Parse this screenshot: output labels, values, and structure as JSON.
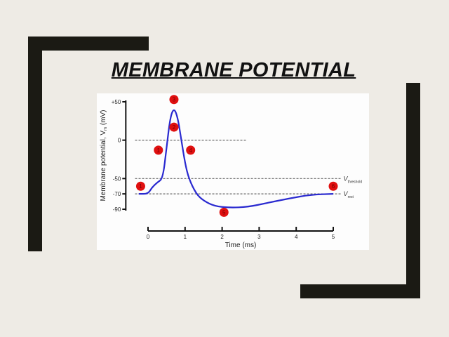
{
  "slide": {
    "title": "MEMBRANE POTENTIAL"
  },
  "chart_data": {
    "type": "line",
    "xlabel": "Time (ms)",
    "ylabel": "Membrane potential, Vm (mV)",
    "ylabel_main": "Membrane potential, V",
    "ylabel_sub": "m",
    "ylabel_unit": " (mV)",
    "x_ticks": [
      0,
      1,
      2,
      3,
      4,
      5
    ],
    "y_ticks": [
      {
        "value": 50,
        "label": "+50"
      },
      {
        "value": 0,
        "label": "0"
      },
      {
        "value": -50,
        "label": "-50"
      },
      {
        "value": -70,
        "label": "-70"
      },
      {
        "value": -90,
        "label": "-90"
      }
    ],
    "xlim": [
      -0.3,
      5
    ],
    "ylim": [
      -90,
      50
    ],
    "series": [
      {
        "color": "#2a2ad0",
        "points": [
          [
            -0.25,
            -70
          ],
          [
            0,
            -70
          ],
          [
            0.1,
            -62
          ],
          [
            0.25,
            -55
          ],
          [
            0.4,
            -50
          ],
          [
            0.5,
            -10
          ],
          [
            0.6,
            30
          ],
          [
            0.7,
            42
          ],
          [
            0.8,
            30
          ],
          [
            0.9,
            0
          ],
          [
            1.0,
            -30
          ],
          [
            1.1,
            -50
          ],
          [
            1.3,
            -70
          ],
          [
            1.5,
            -79
          ],
          [
            1.8,
            -86
          ],
          [
            2.2,
            -88
          ],
          [
            2.7,
            -87
          ],
          [
            3.2,
            -82
          ],
          [
            3.8,
            -76
          ],
          [
            4.4,
            -71
          ],
          [
            5,
            -70
          ]
        ]
      }
    ],
    "reference_lines": [
      {
        "value": 0,
        "xrange": [
          -0.35,
          2.65
        ],
        "label": ""
      },
      {
        "value": -50,
        "xrange": [
          -0.35,
          5.2
        ],
        "label_main": "V",
        "label_sub": "threshold"
      },
      {
        "value": -70,
        "xrange": [
          -0.35,
          5.2
        ],
        "label_main": "V",
        "label_sub": "rest"
      }
    ],
    "markers": [
      {
        "label": "1",
        "t": -0.2,
        "v": -60
      },
      {
        "label": "1",
        "t": 0.28,
        "v": -13
      },
      {
        "label": "2",
        "t": 0.7,
        "v": 17
      },
      {
        "label": "3",
        "t": 0.7,
        "v": 53
      },
      {
        "label": "4",
        "t": 1.15,
        "v": -13
      },
      {
        "label": "5",
        "t": 2.05,
        "v": -94
      },
      {
        "label": "6",
        "t": 5.0,
        "v": -60
      }
    ],
    "marker_color": "#e01010",
    "grid": false
  }
}
